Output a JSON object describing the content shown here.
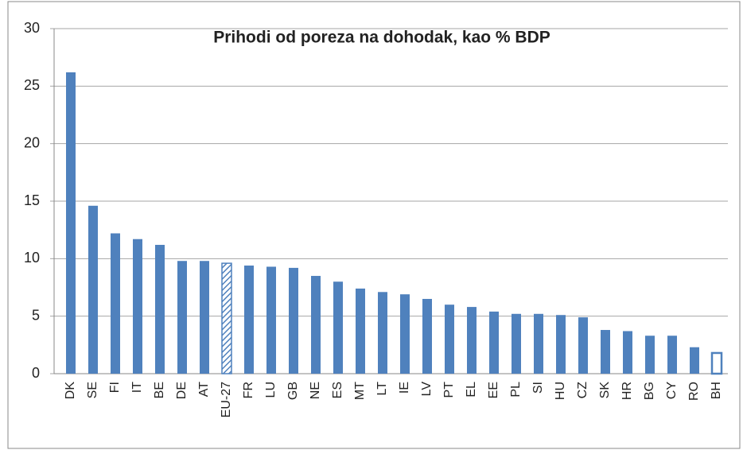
{
  "chart_data": {
    "type": "bar",
    "title": "Prihodi od poreza na dohodak, kao % BDP",
    "categories": [
      "DK",
      "SE",
      "FI",
      "IT",
      "BE",
      "DE",
      "AT",
      "EU-27",
      "FR",
      "LU",
      "GB",
      "NE",
      "ES",
      "MT",
      "LT",
      "IE",
      "LV",
      "PT",
      "EL",
      "EE",
      "PL",
      "SI",
      "HU",
      "CZ",
      "SK",
      "HR",
      "BG",
      "CY",
      "RO",
      "BH"
    ],
    "values": [
      26.2,
      14.6,
      12.2,
      11.7,
      11.2,
      9.8,
      9.8,
      9.6,
      9.4,
      9.3,
      9.2,
      8.5,
      8.0,
      7.4,
      7.1,
      6.9,
      6.5,
      6.0,
      5.8,
      5.4,
      5.2,
      5.2,
      5.1,
      4.9,
      3.8,
      3.7,
      3.3,
      3.3,
      2.3,
      1.8
    ],
    "bar_fill": [
      "solid",
      "solid",
      "solid",
      "solid",
      "solid",
      "solid",
      "solid",
      "hatched",
      "solid",
      "solid",
      "solid",
      "solid",
      "solid",
      "solid",
      "solid",
      "solid",
      "solid",
      "solid",
      "solid",
      "solid",
      "solid",
      "solid",
      "solid",
      "solid",
      "solid",
      "solid",
      "solid",
      "solid",
      "solid",
      "outline"
    ],
    "color": "#4f81bd",
    "ylim": [
      0,
      30
    ],
    "yticks": [
      0,
      5,
      10,
      15,
      20,
      25,
      30
    ],
    "grid": true
  }
}
